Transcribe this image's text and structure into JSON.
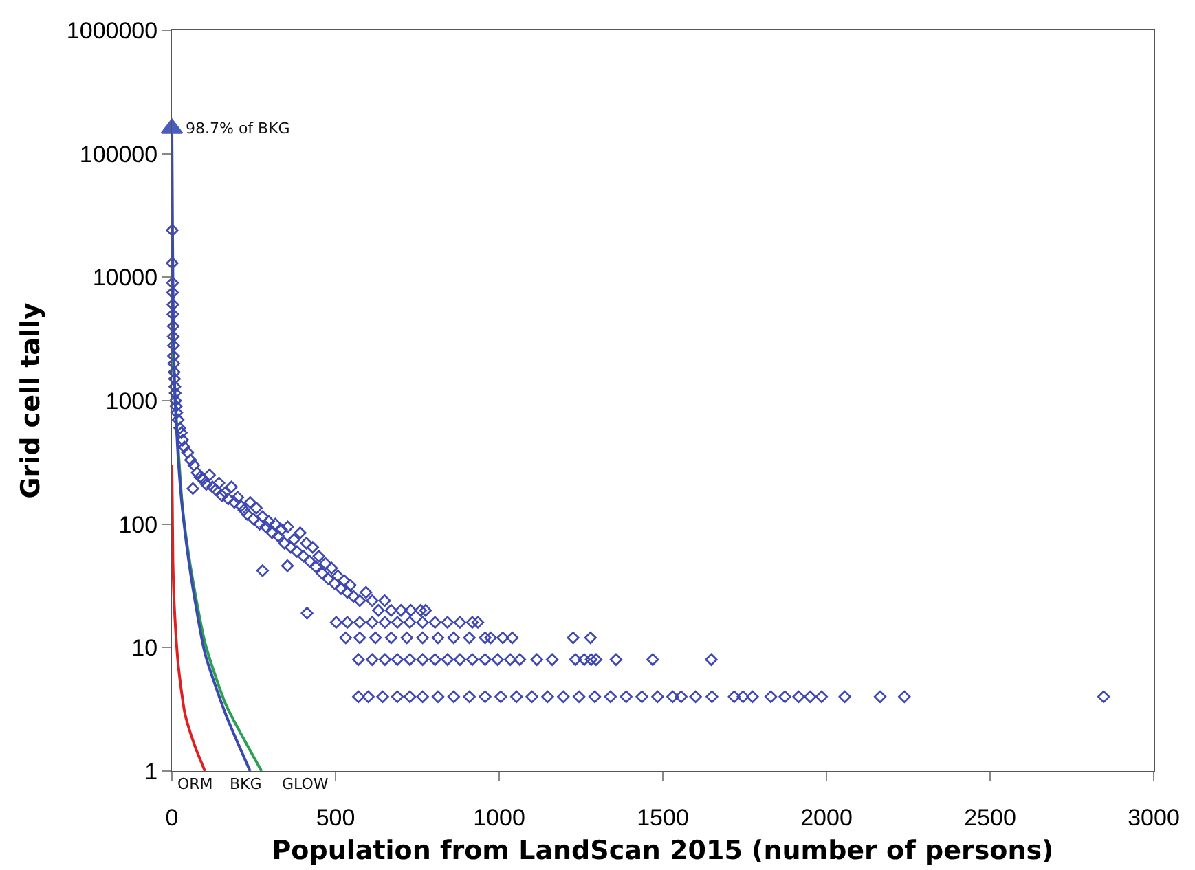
{
  "chart_data": {
    "type": "scatter",
    "xlabel": "Population from LandScan 2015 (number of persons)",
    "ylabel": "Grid cell tally",
    "log": "y",
    "xlim": [
      0,
      3000
    ],
    "xticks": [
      0,
      500,
      1000,
      1500,
      2000,
      2500,
      3000
    ],
    "ylim": [
      1,
      1000000
    ],
    "yticks": [
      1,
      10,
      100,
      1000,
      10000,
      100000,
      1000000
    ],
    "grid": false,
    "series": [
      {
        "type": "line",
        "color": "#e02020",
        "line_style": "solid",
        "marker": "none",
        "x": [
          0,
          3,
          8,
          20,
          40,
          70,
          101
        ],
        "values": [
          300,
          50,
          20,
          7,
          2.9,
          1.6,
          1
        ]
      },
      {
        "type": "line",
        "color": "#2aa050",
        "line_style": "solid",
        "marker": "none",
        "x": [
          0,
          3,
          10,
          32,
          57,
          101,
          164,
          274
        ],
        "values": [
          4500,
          2000,
          1000,
          140,
          45,
          11,
          3.5,
          1
        ]
      },
      {
        "type": "line",
        "color": "#3a4ab0",
        "line_style": "solid",
        "marker": "none",
        "x": [
          0,
          2,
          5,
          10,
          19,
          32,
          57,
          101,
          164,
          239
        ],
        "values": [
          160000,
          20000,
          3000,
          1000,
          350,
          133,
          40,
          9,
          2.9,
          1
        ]
      },
      {
        "type": "scatter",
        "color": "#3f48b0",
        "marker": "diamond",
        "x": [
          1,
          1,
          2,
          2,
          3,
          3,
          4,
          4,
          5,
          5,
          6,
          7,
          8,
          9,
          10,
          11,
          13,
          15,
          19,
          24,
          29,
          33,
          38,
          48,
          57,
          67,
          77,
          86,
          96,
          105,
          115,
          124,
          134,
          144,
          153,
          163,
          172,
          182,
          191,
          201,
          211,
          220,
          230,
          239,
          249,
          258,
          268,
          277,
          287,
          296,
          306,
          316,
          325,
          335,
          344,
          354,
          363,
          373,
          382,
          392,
          402,
          411,
          421,
          430,
          440,
          449,
          459,
          469,
          478,
          488,
          497,
          507,
          517,
          526,
          536,
          545,
          555,
          574,
          593,
          612,
          631,
          650,
          670,
          700,
          730,
          760,
          775,
          64,
          277,
          353,
          413,
          502,
          536,
          574,
          612,
          651,
          689,
          727,
          766,
          804,
          842,
          880,
          918,
          935,
          531,
          574,
          622,
          670,
          718,
          766,
          813,
          861,
          909,
          957,
          974,
          1011,
          1040,
          1226,
          1279,
          570,
          612,
          651,
          689,
          727,
          766,
          804,
          842,
          880,
          918,
          957,
          995,
          1034,
          1063,
          1115,
          1162,
          1233,
          1260,
          1281,
          1296,
          1357,
          1469,
          1648,
          570,
          600,
          644,
          689,
          727,
          766,
          813,
          861,
          909,
          957,
          1005,
          1053,
          1100,
          1148,
          1196,
          1244,
          1292,
          1340,
          1388,
          1436,
          1484,
          1530,
          1556,
          1600,
          1650,
          1718,
          1745,
          1774,
          1830,
          1873,
          1915,
          1950,
          1985,
          2056,
          2164,
          2238,
          2847
        ],
        "values": [
          24000,
          13000,
          9000,
          7500,
          6000,
          5000,
          4000,
          3300,
          2800,
          2300,
          2000,
          1700,
          1500,
          1300,
          1150,
          1000,
          900,
          800,
          700,
          600,
          550,
          480,
          420,
          380,
          330,
          300,
          260,
          240,
          230,
          210,
          250,
          200,
          190,
          215,
          170,
          180,
          160,
          200,
          150,
          165,
          140,
          130,
          120,
          150,
          110,
          135,
          100,
          115,
          95,
          105,
          85,
          100,
          80,
          90,
          70,
          95,
          65,
          75,
          60,
          85,
          55,
          70,
          50,
          65,
          45,
          55,
          40,
          48,
          36,
          44,
          33,
          38,
          30,
          35,
          28,
          32,
          26,
          24,
          28,
          24,
          20,
          24,
          20,
          20,
          20,
          20,
          20,
          194,
          42,
          46,
          19,
          16,
          16,
          16,
          16,
          16,
          16,
          16,
          16,
          16,
          16,
          16,
          16,
          16,
          12,
          12,
          12,
          12,
          12,
          12,
          12,
          12,
          12,
          12,
          12,
          12,
          12,
          12,
          12,
          8,
          8,
          8,
          8,
          8,
          8,
          8,
          8,
          8,
          8,
          8,
          8,
          8,
          8,
          8,
          8,
          8,
          8,
          8,
          8,
          8,
          8,
          8,
          4,
          4,
          4,
          4,
          4,
          4,
          4,
          4,
          4,
          4,
          4,
          4,
          4,
          4,
          4,
          4,
          4,
          4,
          4,
          4,
          4,
          4,
          4,
          4,
          4,
          4,
          4,
          4,
          4,
          4,
          4,
          4,
          4,
          4,
          4,
          4,
          4
        ]
      },
      {
        "type": "scatter",
        "color": "#4a5cc0",
        "marker": "triangle",
        "x": [
          0
        ],
        "values": [
          160000
        ]
      }
    ],
    "annotations": [
      {
        "text": "98.7% of BKG",
        "x": 0,
        "y": 160000
      },
      "ORM",
      "BKG",
      "GLOW"
    ]
  }
}
